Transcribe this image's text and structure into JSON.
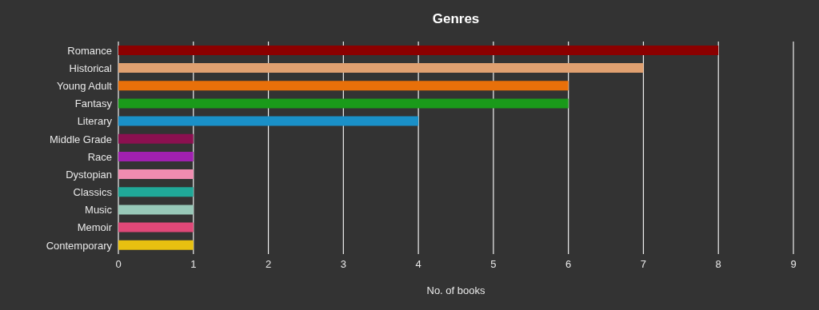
{
  "chart_data": {
    "type": "bar",
    "orientation": "horizontal",
    "title": "Genres",
    "xlabel": "No. of books",
    "categories": [
      "Romance",
      "Historical",
      "Young Adult",
      "Fantasy",
      "Literary",
      "Middle Grade",
      "Race",
      "Dystopian",
      "Classics",
      "Music",
      "Memoir",
      "Contemporary"
    ],
    "values": [
      8,
      7,
      6,
      6,
      4,
      1,
      1,
      1,
      1,
      1,
      1,
      1
    ],
    "colors": [
      "#8b0000",
      "#e0a070",
      "#e8700a",
      "#1a9a1a",
      "#1a90c8",
      "#8b1050",
      "#a020b0",
      "#f08cb0",
      "#20a898",
      "#98c8b8",
      "#e04878",
      "#e8c010"
    ],
    "xlim": [
      0,
      9
    ],
    "xticks": [
      0,
      1,
      2,
      3,
      4,
      5,
      6,
      7,
      8,
      9
    ],
    "grid": "x",
    "legend": false
  }
}
